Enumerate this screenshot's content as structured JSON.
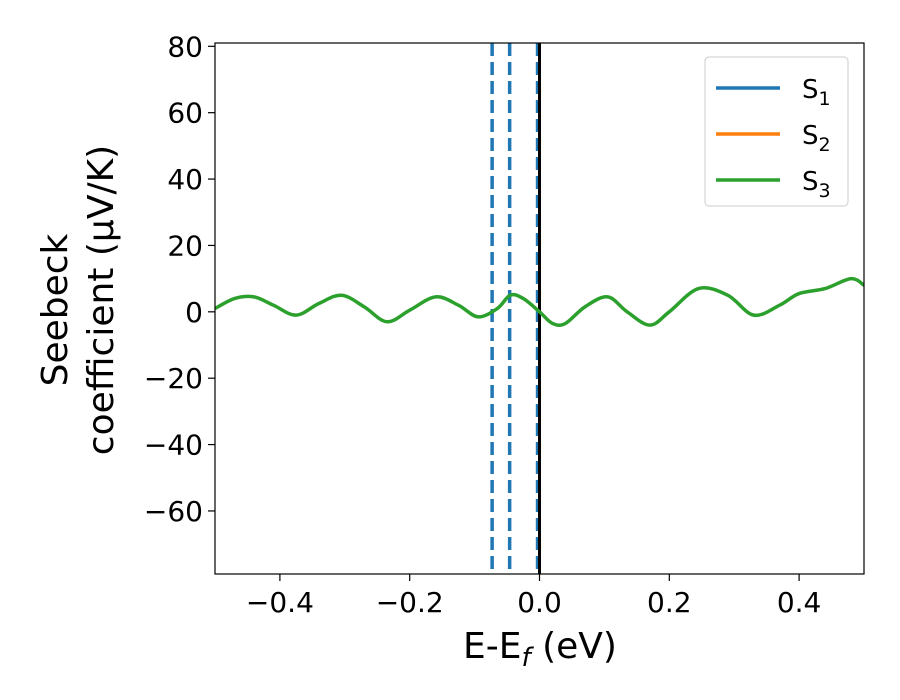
{
  "chart_data": {
    "type": "line",
    "title": "",
    "xlabel": "E-E",
    "xlabel_sub": "f",
    "xlabel_unit": " (eV)",
    "ylabel_line1": "Seebeck",
    "ylabel_line2": "coefficient  (μV/K)",
    "xlim": [
      -0.5,
      0.5
    ],
    "ylim": [
      -79,
      81
    ],
    "xticks": [
      -0.4,
      -0.2,
      0.0,
      0.2,
      0.4
    ],
    "xtick_labels": [
      "−0.4",
      "−0.2",
      "0.0",
      "0.2",
      "0.4"
    ],
    "yticks": [
      -60,
      -40,
      -20,
      0,
      20,
      40,
      60,
      80
    ],
    "ytick_labels": [
      "−60",
      "−40",
      "−20",
      "0",
      "20",
      "40",
      "60",
      "80"
    ],
    "legend_position": "top-right",
    "series": [
      {
        "name": "S",
        "sub": "1",
        "color": "#1f77b4",
        "visible": false,
        "x": [
          -0.5,
          -0.47,
          -0.44,
          -0.41,
          -0.375,
          -0.34,
          -0.305,
          -0.27,
          -0.235,
          -0.2,
          -0.16,
          -0.125,
          -0.095,
          -0.065,
          -0.045,
          -0.025,
          0.0,
          0.02,
          0.04,
          0.07,
          0.105,
          0.135,
          0.17,
          0.2,
          0.245,
          0.29,
          0.33,
          0.37,
          0.4,
          0.44,
          0.48,
          0.5
        ],
        "y": [
          1,
          4,
          4.5,
          2,
          -1,
          2.5,
          5,
          1.5,
          -3,
          0.5,
          4.5,
          2,
          -1.5,
          1,
          5,
          4,
          0,
          -3.5,
          -3.5,
          1.5,
          4.5,
          0,
          -4,
          0,
          7,
          5,
          -1,
          2,
          5.5,
          7,
          10,
          8
        ]
      },
      {
        "name": "S",
        "sub": "2",
        "color": "#ff7f0e",
        "visible": false,
        "x": [
          -0.5,
          -0.47,
          -0.44,
          -0.41,
          -0.375,
          -0.34,
          -0.305,
          -0.27,
          -0.235,
          -0.2,
          -0.16,
          -0.125,
          -0.095,
          -0.065,
          -0.045,
          -0.025,
          0.0,
          0.02,
          0.04,
          0.07,
          0.105,
          0.135,
          0.17,
          0.2,
          0.245,
          0.29,
          0.33,
          0.37,
          0.4,
          0.44,
          0.48,
          0.5
        ],
        "y": [
          1,
          4,
          4.5,
          2,
          -1,
          2.5,
          5,
          1.5,
          -3,
          0.5,
          4.5,
          2,
          -1.5,
          1,
          5,
          4,
          0,
          -3.5,
          -3.5,
          1.5,
          4.5,
          0,
          -4,
          0,
          7,
          5,
          -1,
          2,
          5.5,
          7,
          10,
          8
        ]
      },
      {
        "name": "S",
        "sub": "3",
        "color": "#2ca02c",
        "visible": true,
        "x": [
          -0.5,
          -0.47,
          -0.44,
          -0.41,
          -0.375,
          -0.34,
          -0.305,
          -0.27,
          -0.235,
          -0.2,
          -0.16,
          -0.125,
          -0.095,
          -0.065,
          -0.045,
          -0.025,
          0.0,
          0.02,
          0.04,
          0.07,
          0.105,
          0.135,
          0.17,
          0.2,
          0.245,
          0.29,
          0.33,
          0.37,
          0.4,
          0.44,
          0.48,
          0.5
        ],
        "y": [
          1,
          4,
          4.5,
          2,
          -1,
          2.5,
          5,
          1.5,
          -3,
          0.5,
          4.5,
          2,
          -1.5,
          1,
          5,
          4,
          0,
          -3.5,
          -3.5,
          1.5,
          4.5,
          0,
          -4,
          0,
          7,
          5,
          -1,
          2,
          5.5,
          7,
          10,
          8
        ]
      }
    ],
    "vlines": [
      {
        "x": -0.073,
        "style": "dashed",
        "color": "#1f77b4"
      },
      {
        "x": -0.046,
        "style": "dashed",
        "color": "#1f77b4"
      },
      {
        "x": -0.003,
        "style": "dashed",
        "color": "#1f77b4"
      },
      {
        "x": 0.0,
        "style": "solid",
        "color": "#000000"
      }
    ]
  }
}
